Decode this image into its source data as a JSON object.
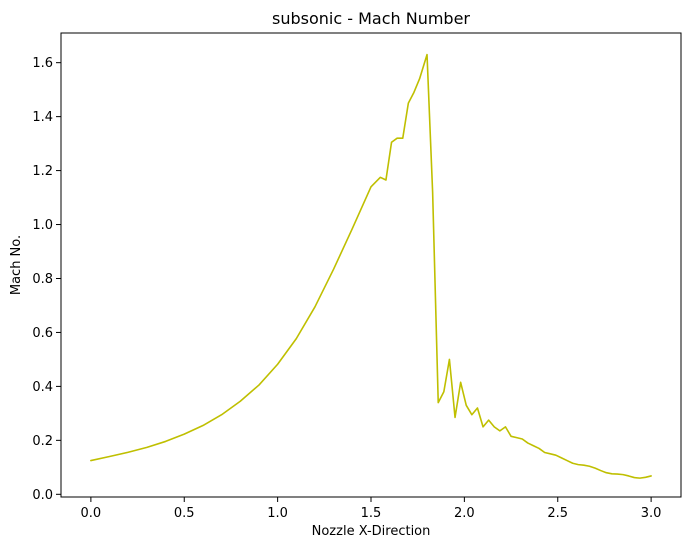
{
  "chart_data": {
    "type": "line",
    "title": "subsonic - Mach Number",
    "xlabel": "Nozzle X-Direction",
    "ylabel": "Mach No.",
    "xlim": [
      -0.16,
      3.16
    ],
    "ylim": [
      -0.01,
      1.71
    ],
    "xticks": [
      0.0,
      0.5,
      1.0,
      1.5,
      2.0,
      2.5,
      3.0
    ],
    "xtick_labels": [
      "0.0",
      "0.5",
      "1.0",
      "1.5",
      "2.0",
      "2.5",
      "3.0"
    ],
    "yticks": [
      0.0,
      0.2,
      0.4,
      0.6,
      0.8,
      1.0,
      1.2,
      1.4,
      1.6
    ],
    "ytick_labels": [
      "0.0",
      "0.2",
      "0.4",
      "0.6",
      "0.8",
      "1.0",
      "1.2",
      "1.4",
      "1.6"
    ],
    "grid": false,
    "series": [
      {
        "name": "Mach Number",
        "color": "#bfbf00",
        "x": [
          0.0,
          0.1,
          0.2,
          0.3,
          0.4,
          0.5,
          0.6,
          0.7,
          0.8,
          0.9,
          1.0,
          1.1,
          1.2,
          1.3,
          1.4,
          1.5,
          1.55,
          1.58,
          1.61,
          1.64,
          1.67,
          1.7,
          1.73,
          1.76,
          1.8,
          1.83,
          1.86,
          1.89,
          1.92,
          1.95,
          1.98,
          2.01,
          2.04,
          2.07,
          2.1,
          2.13,
          2.16,
          2.19,
          2.22,
          2.25,
          2.28,
          2.31,
          2.34,
          2.37,
          2.4,
          2.43,
          2.46,
          2.49,
          2.52,
          2.55,
          2.58,
          2.61,
          2.64,
          2.67,
          2.7,
          2.73,
          2.76,
          2.79,
          2.82,
          2.85,
          2.88,
          2.91,
          2.94,
          2.97,
          3.0
        ],
        "values": [
          0.125,
          0.14,
          0.156,
          0.174,
          0.196,
          0.223,
          0.255,
          0.295,
          0.345,
          0.405,
          0.482,
          0.577,
          0.695,
          0.835,
          0.985,
          1.14,
          1.175,
          1.165,
          1.305,
          1.32,
          1.32,
          1.45,
          1.49,
          1.54,
          1.63,
          1.12,
          0.34,
          0.38,
          0.5,
          0.285,
          0.415,
          0.33,
          0.295,
          0.32,
          0.25,
          0.275,
          0.25,
          0.235,
          0.25,
          0.215,
          0.21,
          0.205,
          0.19,
          0.18,
          0.17,
          0.155,
          0.15,
          0.145,
          0.135,
          0.125,
          0.115,
          0.11,
          0.108,
          0.104,
          0.097,
          0.088,
          0.08,
          0.076,
          0.075,
          0.073,
          0.068,
          0.062,
          0.06,
          0.063,
          0.068
        ]
      }
    ]
  }
}
